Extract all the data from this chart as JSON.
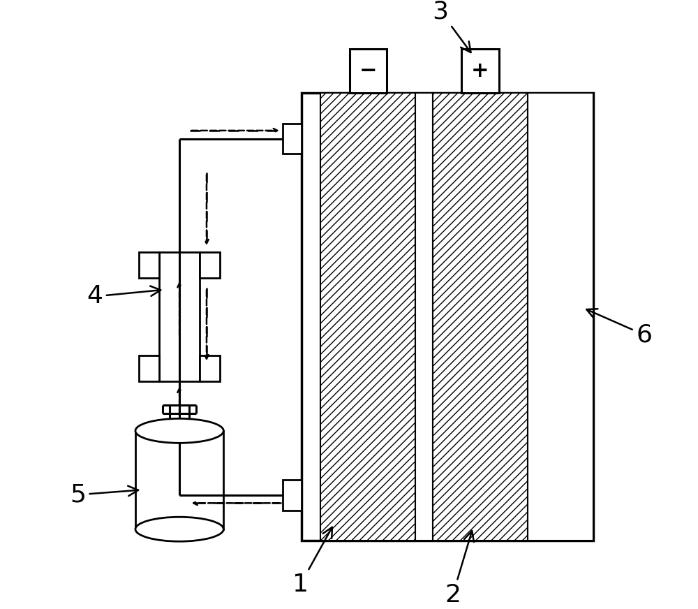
{
  "bg_color": "#ffffff",
  "line_color": "#000000",
  "figsize": [
    10.0,
    8.72
  ],
  "dpi": 100
}
